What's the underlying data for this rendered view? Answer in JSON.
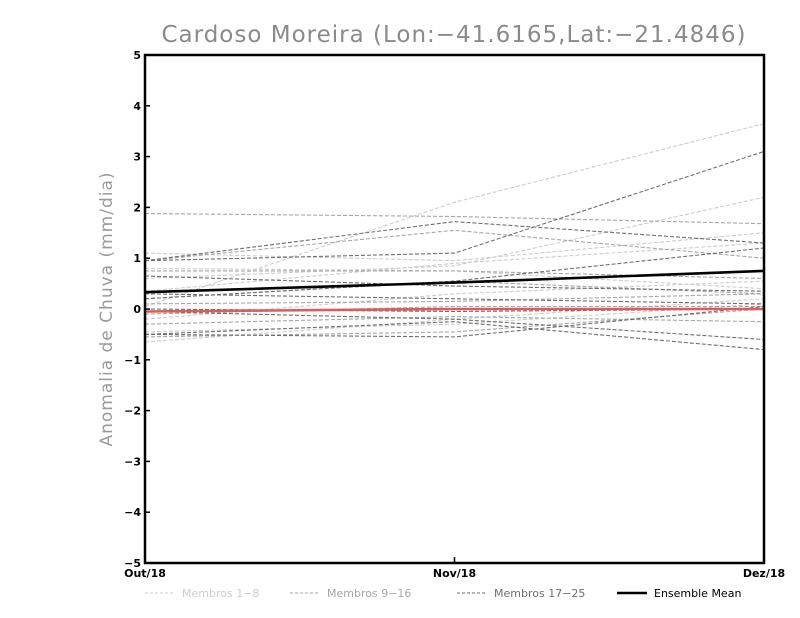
{
  "chart_data": {
    "type": "line",
    "title": "Cardoso Moreira (Lon:−41.6165,Lat:−21.4846)",
    "ylabel": "Anomalia de Chuva (mm/dia)",
    "xlabel": "",
    "categories": [
      "Out/18",
      "Nov/18",
      "Dez/18"
    ],
    "ylim": [
      -5,
      5
    ],
    "yticks": [
      -5,
      -4,
      -3,
      -2,
      -1,
      0,
      1,
      2,
      3,
      4,
      5
    ],
    "grid": false,
    "legend_position": "bottom",
    "legend": [
      {
        "label": "Membros 1-8",
        "group": "g1",
        "color": "#cccccc",
        "dash": "dashed"
      },
      {
        "label": "Membros 9-16",
        "group": "g2",
        "color": "#a6a6a6",
        "dash": "dashed"
      },
      {
        "label": "Membros 17-25",
        "group": "g3",
        "color": "#6e6e6e",
        "dash": "dashed"
      },
      {
        "label": "Ensemble Mean",
        "group": "mean",
        "color": "#000000",
        "dash": "solid"
      }
    ],
    "series": [
      {
        "group": "g1",
        "values": [
          0.05,
          2.1,
          3.65
        ]
      },
      {
        "group": "g1",
        "values": [
          0.6,
          0.85,
          2.2
        ]
      },
      {
        "group": "g1",
        "values": [
          1.1,
          0.95,
          1.5
        ]
      },
      {
        "group": "g1",
        "values": [
          0.8,
          0.75,
          0.4
        ]
      },
      {
        "group": "g1",
        "values": [
          -0.2,
          0.3,
          0.55
        ]
      },
      {
        "group": "g1",
        "values": [
          -0.45,
          -0.3,
          0.1
        ]
      },
      {
        "group": "g1",
        "values": [
          0.35,
          0.9,
          1.3
        ]
      },
      {
        "group": "g1",
        "values": [
          -0.65,
          -0.2,
          0.2
        ]
      },
      {
        "group": "g2",
        "values": [
          1.88,
          1.82,
          1.68
        ]
      },
      {
        "group": "g2",
        "values": [
          0.95,
          1.55,
          1.0
        ]
      },
      {
        "group": "g2",
        "values": [
          0.75,
          0.75,
          0.6
        ]
      },
      {
        "group": "g2",
        "values": [
          0.2,
          0.55,
          0.3
        ]
      },
      {
        "group": "g2",
        "values": [
          -0.1,
          0.05,
          0.05
        ]
      },
      {
        "group": "g2",
        "values": [
          -0.3,
          -0.15,
          -0.25
        ]
      },
      {
        "group": "g2",
        "values": [
          -0.55,
          -0.45,
          0.0
        ]
      },
      {
        "group": "g2",
        "values": [
          0.1,
          0.15,
          0.3
        ]
      },
      {
        "group": "g3",
        "values": [
          0.95,
          1.1,
          3.1
        ]
      },
      {
        "group": "g3",
        "values": [
          0.95,
          1.72,
          1.3
        ]
      },
      {
        "group": "g3",
        "values": [
          0.2,
          0.55,
          1.2
        ]
      },
      {
        "group": "g3",
        "values": [
          0.65,
          0.45,
          0.35
        ]
      },
      {
        "group": "g3",
        "values": [
          0.3,
          0.2,
          0.1
        ]
      },
      {
        "group": "g3",
        "values": [
          -0.05,
          -0.2,
          -0.6
        ]
      },
      {
        "group": "g3",
        "values": [
          -0.5,
          -0.25,
          -0.8
        ]
      },
      {
        "group": "g3",
        "values": [
          -0.5,
          -0.55,
          0.05
        ]
      },
      {
        "group": "g3",
        "values": [
          0.0,
          -0.05,
          0.0
        ]
      },
      {
        "group": "mean",
        "values": [
          0.33,
          0.52,
          0.75
        ]
      },
      {
        "group": "zero",
        "values": [
          -0.05,
          0.0,
          0.0
        ]
      }
    ],
    "colors": {
      "g1": "#cccccc",
      "g2": "#a6a6a6",
      "g3": "#6e6e6e",
      "mean": "#000000",
      "zero": "#e05a5a"
    }
  }
}
